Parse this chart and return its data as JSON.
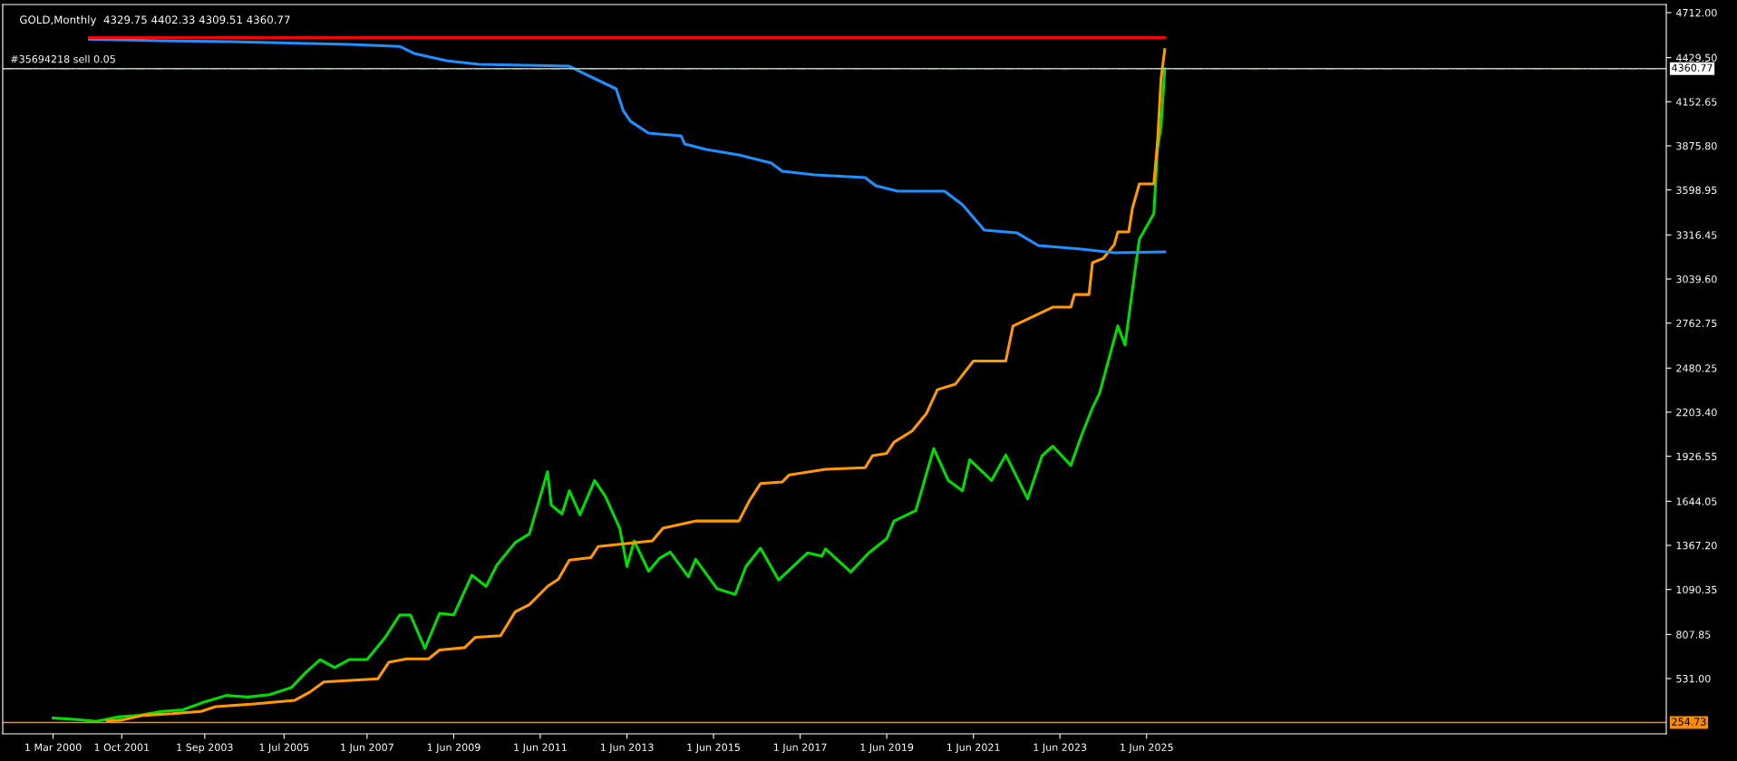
{
  "chart_data": {
    "type": "line",
    "title": "GOLD,Monthly  4329.75 4402.33 4309.51 4360.77",
    "xlim": [
      "1999-01",
      "2037-06"
    ],
    "xticks": [
      {
        "value": "2000-03-01",
        "label": "1 Mar 2000"
      },
      {
        "value": "2001-10-01",
        "label": "1 Oct 2001"
      },
      {
        "value": "2003-09-01",
        "label": "1 Sep 2003"
      },
      {
        "value": "2005-07-01",
        "label": "1 Jul 2005"
      },
      {
        "value": "2007-06-01",
        "label": "1 Jun 2007"
      },
      {
        "value": "2009-06-01",
        "label": "1 Jun 2009"
      },
      {
        "value": "2011-06-01",
        "label": "1 Jun 2011"
      },
      {
        "value": "2013-06-01",
        "label": "1 Jun 2013"
      },
      {
        "value": "2015-06-01",
        "label": "1 Jun 2015"
      },
      {
        "value": "2017-06-01",
        "label": "1 Jun 2017"
      },
      {
        "value": "2019-06-01",
        "label": "1 Jun 2019"
      },
      {
        "value": "2021-06-01",
        "label": "1 Jun 2021"
      },
      {
        "value": "2023-06-01",
        "label": "1 Jun 2023"
      },
      {
        "value": "2025-06-01",
        "label": "1 Jun 2025"
      }
    ],
    "ylim": [
      184,
      4763
    ],
    "yticks": [
      {
        "value": 4712.0,
        "label": "4712.00"
      },
      {
        "value": 4429.5,
        "label": "4429.50"
      },
      {
        "value": 4152.65,
        "label": "4152.65"
      },
      {
        "value": 3875.8,
        "label": "3875.80"
      },
      {
        "value": 3598.95,
        "label": "3598.95"
      },
      {
        "value": 3316.45,
        "label": "3316.45"
      },
      {
        "value": 3039.6,
        "label": "3039.60"
      },
      {
        "value": 2762.75,
        "label": "2762.75"
      },
      {
        "value": 2480.25,
        "label": "2480.25"
      },
      {
        "value": 2203.4,
        "label": "2203.40"
      },
      {
        "value": 1926.55,
        "label": "1926.55"
      },
      {
        "value": 1644.05,
        "label": "1644.05"
      },
      {
        "value": 1367.2,
        "label": "1367.20"
      },
      {
        "value": 1090.35,
        "label": "1090.35"
      },
      {
        "value": 807.85,
        "label": "807.85"
      },
      {
        "value": 531.0,
        "label": "531.00"
      }
    ],
    "grid": false,
    "marker": "none",
    "line_style": "solid",
    "ref_lines": [
      {
        "axis": "y",
        "value": 4360.77,
        "label": "#35694218 sell 0.05",
        "color": "#22b022",
        "line_style": "dashed"
      },
      {
        "axis": "y",
        "value": 4360.77,
        "label": "4360.77",
        "color": "#c0c0c0",
        "line_style": "solid"
      },
      {
        "axis": "y",
        "value": 254.73,
        "label": "254.73",
        "color": "#ff8c00",
        "line_style": "solid"
      }
    ],
    "series": [
      {
        "color": "#00dd00",
        "x": [
          "2000-03",
          "2000-09",
          "2001-03",
          "2001-09",
          "2002-03",
          "2002-09",
          "2003-03",
          "2003-09",
          "2004-03",
          "2004-09",
          "2005-03",
          "2005-09",
          "2006-01",
          "2006-05",
          "2006-09",
          "2007-01",
          "2007-06",
          "2007-11",
          "2008-03",
          "2008-06",
          "2008-10",
          "2009-02",
          "2009-06",
          "2009-11",
          "2010-03",
          "2010-06",
          "2010-11",
          "2011-03",
          "2011-08",
          "2011-09",
          "2011-12",
          "2012-02",
          "2012-05",
          "2012-09",
          "2012-12",
          "2013-04",
          "2013-06",
          "2013-08",
          "2013-12",
          "2014-03",
          "2014-06",
          "2014-11",
          "2015-01",
          "2015-07",
          "2015-12",
          "2016-03",
          "2016-07",
          "2016-12",
          "2017-08",
          "2017-12",
          "2018-01",
          "2018-08",
          "2019-01",
          "2019-06",
          "2019-08",
          "2020-02",
          "2020-07",
          "2020-11",
          "2021-03",
          "2021-05",
          "2021-11",
          "2022-03",
          "2022-09",
          "2023-01",
          "2023-04",
          "2023-09",
          "2023-12",
          "2024-03",
          "2024-05",
          "2024-10",
          "2024-12",
          "2025-03",
          "2025-04",
          "2025-08",
          "2025-09",
          "2025-10",
          "2025-11"
        ],
        "values": [
          283,
          275,
          262,
          290,
          300,
          325,
          335,
          385,
          425,
          415,
          430,
          475,
          570,
          650,
          600,
          650,
          650,
          790,
          930,
          930,
          720,
          940,
          930,
          1180,
          1110,
          1245,
          1385,
          1440,
          1830,
          1620,
          1565,
          1710,
          1560,
          1775,
          1675,
          1475,
          1235,
          1395,
          1205,
          1285,
          1325,
          1170,
          1280,
          1095,
          1060,
          1235,
          1350,
          1150,
          1320,
          1300,
          1345,
          1200,
          1320,
          1410,
          1520,
          1585,
          1975,
          1775,
          1710,
          1905,
          1775,
          1935,
          1660,
          1930,
          1990,
          1870,
          2060,
          2230,
          2325,
          2745,
          2625,
          3125,
          3290,
          3450,
          3860,
          4000,
          4360
        ]
      },
      {
        "color": "#ff9900",
        "x": [
          "2001-06",
          "2001-10",
          "2002-04",
          "2002-12",
          "2003-08",
          "2003-12",
          "2004-10",
          "2005-10",
          "2006-02",
          "2006-06",
          "2007-09",
          "2007-12",
          "2008-05",
          "2008-11",
          "2009-02",
          "2009-09",
          "2009-12",
          "2010-07",
          "2010-11",
          "2011-03",
          "2011-08",
          "2011-11",
          "2012-02",
          "2012-08",
          "2012-10",
          "2014-01",
          "2014-04",
          "2015-01",
          "2016-01",
          "2016-04",
          "2016-07",
          "2017-01",
          "2017-03",
          "2018-01",
          "2018-12",
          "2019-02",
          "2019-06",
          "2019-08",
          "2020-01",
          "2020-05",
          "2020-08",
          "2021-01",
          "2021-06",
          "2022-03",
          "2022-05",
          "2023-04",
          "2023-09",
          "2023-10",
          "2024-02",
          "2024-03",
          "2024-06",
          "2024-09",
          "2024-10",
          "2025-01",
          "2025-02",
          "2025-04",
          "2025-08",
          "2025-09",
          "2025-10",
          "2025-11"
        ],
        "values": [
          265,
          270,
          300,
          310,
          325,
          355,
          370,
          395,
          445,
          510,
          530,
          633,
          655,
          655,
          710,
          725,
          790,
          800,
          950,
          995,
          1110,
          1155,
          1275,
          1290,
          1360,
          1395,
          1475,
          1520,
          1520,
          1650,
          1755,
          1765,
          1810,
          1845,
          1855,
          1930,
          1945,
          2015,
          2085,
          2195,
          2345,
          2380,
          2525,
          2525,
          2745,
          2863,
          2863,
          2942,
          2942,
          3142,
          3170,
          3255,
          3335,
          3335,
          3483,
          3637,
          3637,
          3900,
          4300,
          4480
        ]
      },
      {
        "color": "#1e90ff",
        "x": [
          "2001-01",
          "2002-09",
          "2004-04",
          "2007-01",
          "2008-03",
          "2008-07",
          "2009-04",
          "2010-01",
          "2012-02",
          "2012-07",
          "2013-03",
          "2013-05",
          "2013-07",
          "2013-12",
          "2014-09",
          "2014-10",
          "2015-04",
          "2016-01",
          "2016-10",
          "2017-01",
          "2017-10",
          "2018-12",
          "2019-03",
          "2019-09",
          "2020-10",
          "2021-03",
          "2021-09",
          "2022-06",
          "2022-12",
          "2023-12",
          "2024-09",
          "2025-11"
        ],
        "values": [
          4545,
          4536,
          4530,
          4513,
          4500,
          4456,
          4410,
          4388,
          4376,
          4320,
          4234,
          4097,
          4030,
          3955,
          3938,
          3887,
          3853,
          3819,
          3768,
          3716,
          3694,
          3677,
          3625,
          3591,
          3591,
          3506,
          3347,
          3330,
          3250,
          3227,
          3204,
          3210
        ]
      },
      {
        "color": "#ff0000",
        "x": [
          "2001-01",
          "2025-11"
        ],
        "values": [
          4555,
          4555
        ]
      }
    ]
  }
}
